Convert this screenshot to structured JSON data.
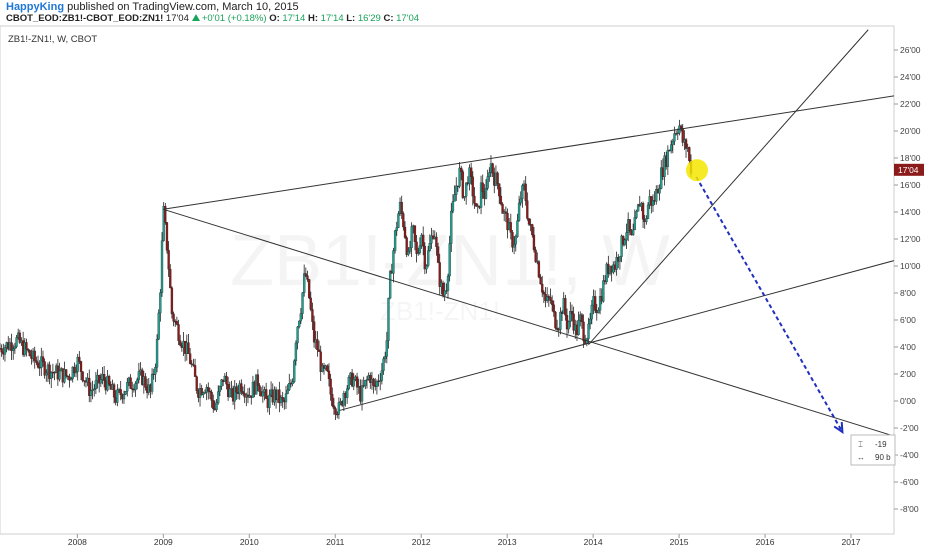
{
  "header": {
    "author": "HappyKing",
    "published": "published on TradingView.com, March 10, 2015",
    "symbol": "CBOT_EOD:ZB1!-CBOT_EOD:ZN1!",
    "last": "17'04",
    "change": "+0'01 (+0.18%)",
    "o_label": "O:",
    "o_val": "17'14",
    "h_label": "H:",
    "h_val": "17'14",
    "l_label": "L:",
    "l_val": "16'29",
    "c_label": "C:",
    "c_val": "17'04"
  },
  "pane_label": "ZB1!-ZN1!, W, CBOT",
  "watermark": "ZB1!-ZN1!, W",
  "watermark_sub": "ZB1!-ZN1!",
  "measure_box": {
    "line1": "-19",
    "line2": "90 b"
  },
  "colors": {
    "up": "#1aa35a",
    "candle_up": "#1f9e8f",
    "candle_down": "#8b1a1a",
    "price_tag": "#8b1a1a",
    "arrow": "#1f2fbf",
    "marker": "#f5e600"
  },
  "chart_data": {
    "type": "candlestick",
    "title": "ZB1!-ZN1!, W, CBOT",
    "interval": "W",
    "y_ticks": [
      "26'00",
      "24'00",
      "22'00",
      "20'00",
      "18'00",
      "16'00",
      "14'00",
      "12'00",
      "10'00",
      "8'00",
      "6'00",
      "4'00",
      "2'00",
      "0'00",
      "-2'00",
      "-4'00",
      "-6'00",
      "-8'00"
    ],
    "y_tick_values": [
      26,
      24,
      22,
      20,
      18,
      16,
      14,
      12,
      10,
      8,
      6,
      4,
      2,
      0,
      -2,
      -4,
      -6,
      -8
    ],
    "x_ticks": [
      "2008",
      "2009",
      "2010",
      "2011",
      "2012",
      "2013",
      "2014",
      "2015",
      "2016",
      "2017"
    ],
    "x_tick_values": [
      2008,
      2009,
      2010,
      2011,
      2012,
      2013,
      2014,
      2015,
      2016,
      2017
    ],
    "ylim": [
      -9.5,
      27.5
    ],
    "xlim": [
      2007.1,
      2017.5
    ],
    "current_price": "17'04",
    "current_value": 17.125,
    "price_path": [
      [
        2007.1,
        3.9
      ],
      [
        2007.3,
        4.5
      ],
      [
        2007.5,
        3.0
      ],
      [
        2007.7,
        2.2
      ],
      [
        2007.9,
        1.8
      ],
      [
        2008.0,
        3.0
      ],
      [
        2008.15,
        0.7
      ],
      [
        2008.3,
        1.7
      ],
      [
        2008.45,
        0.2
      ],
      [
        2008.6,
        1.2
      ],
      [
        2008.75,
        1.8
      ],
      [
        2008.85,
        0.6
      ],
      [
        2008.92,
        3.5
      ],
      [
        2008.97,
        9
      ],
      [
        2009.0,
        14.2
      ],
      [
        2009.05,
        11
      ],
      [
        2009.1,
        6.5
      ],
      [
        2009.2,
        4.7
      ],
      [
        2009.3,
        3.3
      ],
      [
        2009.4,
        0.8
      ],
      [
        2009.5,
        1.2
      ],
      [
        2009.6,
        -0.6
      ],
      [
        2009.7,
        1.8
      ],
      [
        2009.8,
        0.2
      ],
      [
        2009.9,
        1.3
      ],
      [
        2010.0,
        0.5
      ],
      [
        2010.1,
        1.5
      ],
      [
        2010.2,
        -0.1
      ],
      [
        2010.3,
        0.5
      ],
      [
        2010.4,
        -0.3
      ],
      [
        2010.5,
        1.6
      ],
      [
        2010.55,
        5.3
      ],
      [
        2010.6,
        7.0
      ],
      [
        2010.65,
        9.6
      ],
      [
        2010.7,
        7.5
      ],
      [
        2010.75,
        4.6
      ],
      [
        2010.8,
        3.8
      ],
      [
        2010.85,
        2.0
      ],
      [
        2010.9,
        2.1
      ],
      [
        2010.95,
        0.4
      ],
      [
        2011.0,
        -0.3
      ],
      [
        2011.05,
        -0.7
      ],
      [
        2011.1,
        0.7
      ],
      [
        2011.2,
        1.7
      ],
      [
        2011.3,
        0.4
      ],
      [
        2011.4,
        2.0
      ],
      [
        2011.45,
        0.8
      ],
      [
        2011.55,
        2.5
      ],
      [
        2011.6,
        4.5
      ],
      [
        2011.63,
        8.5
      ],
      [
        2011.7,
        12.5
      ],
      [
        2011.75,
        14.5
      ],
      [
        2011.8,
        13.0
      ],
      [
        2011.85,
        10.5
      ],
      [
        2011.9,
        12.8
      ],
      [
        2011.95,
        10.5
      ],
      [
        2012.0,
        12.7
      ],
      [
        2012.05,
        10.0
      ],
      [
        2012.1,
        11.5
      ],
      [
        2012.15,
        13.0
      ],
      [
        2012.2,
        9.5
      ],
      [
        2012.25,
        7.8
      ],
      [
        2012.3,
        8.8
      ],
      [
        2012.35,
        13.5
      ],
      [
        2012.4,
        15.8
      ],
      [
        2012.45,
        17.0
      ],
      [
        2012.5,
        15.0
      ],
      [
        2012.55,
        17.0
      ],
      [
        2012.6,
        15.5
      ],
      [
        2012.65,
        13.5
      ],
      [
        2012.7,
        16.0
      ],
      [
        2012.75,
        15.0
      ],
      [
        2012.8,
        17.8
      ],
      [
        2012.85,
        16.6
      ],
      [
        2012.9,
        16.0
      ],
      [
        2012.95,
        14.0
      ],
      [
        2013.0,
        13.3
      ],
      [
        2013.05,
        11.8
      ],
      [
        2013.1,
        12.0
      ],
      [
        2013.15,
        15.0
      ],
      [
        2013.2,
        15.8
      ],
      [
        2013.25,
        13.2
      ],
      [
        2013.3,
        12.0
      ],
      [
        2013.35,
        10.3
      ],
      [
        2013.4,
        8.7
      ],
      [
        2013.45,
        7.2
      ],
      [
        2013.5,
        7.6
      ],
      [
        2013.55,
        6.0
      ],
      [
        2013.6,
        5.8
      ],
      [
        2013.65,
        7.3
      ],
      [
        2013.7,
        5.6
      ],
      [
        2013.75,
        6.6
      ],
      [
        2013.8,
        5.0
      ],
      [
        2013.85,
        6.0
      ],
      [
        2013.9,
        4.8
      ],
      [
        2013.95,
        5.1
      ],
      [
        2014.0,
        7.2
      ],
      [
        2014.05,
        7.0
      ],
      [
        2014.1,
        8.0
      ],
      [
        2014.15,
        9.5
      ],
      [
        2014.2,
        10.2
      ],
      [
        2014.25,
        10.0
      ],
      [
        2014.3,
        11.0
      ],
      [
        2014.35,
        12.0
      ],
      [
        2014.4,
        13.0
      ],
      [
        2014.45,
        11.8
      ],
      [
        2014.5,
        13.5
      ],
      [
        2014.55,
        15.0
      ],
      [
        2014.6,
        13.0
      ],
      [
        2014.65,
        15.0
      ],
      [
        2014.7,
        14.6
      ],
      [
        2014.75,
        15.8
      ],
      [
        2014.8,
        17.0
      ],
      [
        2014.85,
        18.0
      ],
      [
        2014.9,
        19.0
      ],
      [
        2014.95,
        20.0
      ],
      [
        2015.0,
        20.5
      ],
      [
        2015.05,
        19.0
      ],
      [
        2015.1,
        18.8
      ],
      [
        2015.12,
        17.6
      ],
      [
        2015.15,
        17.1
      ]
    ],
    "trendlines": [
      {
        "from": [
          2009.0,
          14.2
        ],
        "to": [
          2017.5,
          22.6
        ]
      },
      {
        "from": [
          2009.0,
          14.2
        ],
        "to": [
          2017.5,
          -2.6
        ]
      },
      {
        "from": [
          2011.05,
          -0.7
        ],
        "to": [
          2017.5,
          10.4
        ]
      },
      {
        "from": [
          2013.95,
          4.2
        ],
        "to": [
          2017.2,
          27.5
        ]
      }
    ],
    "projection_arrow": {
      "from": [
        2015.2,
        16.6
      ],
      "to": [
        2016.9,
        -2.3
      ]
    }
  }
}
